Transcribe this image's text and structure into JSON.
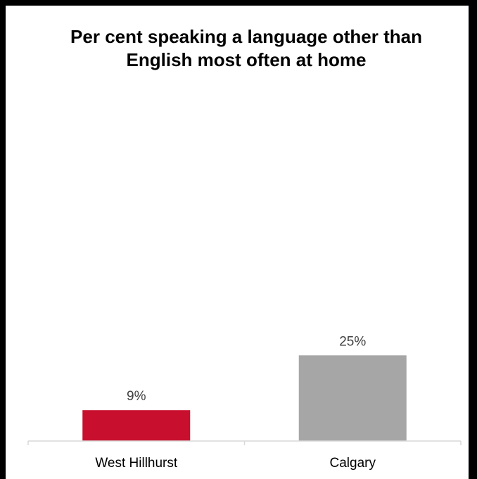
{
  "chart_data": {
    "type": "bar",
    "title": "Per cent speaking a language other than English most often at home",
    "categories": [
      "West Hillhurst",
      "Calgary"
    ],
    "values": [
      9,
      25
    ],
    "value_labels": [
      "9%",
      "25%"
    ],
    "colors": [
      "#c8102e",
      "#a6a6a6"
    ],
    "ylim": [
      0,
      100
    ],
    "grid": false,
    "legend": "none"
  }
}
